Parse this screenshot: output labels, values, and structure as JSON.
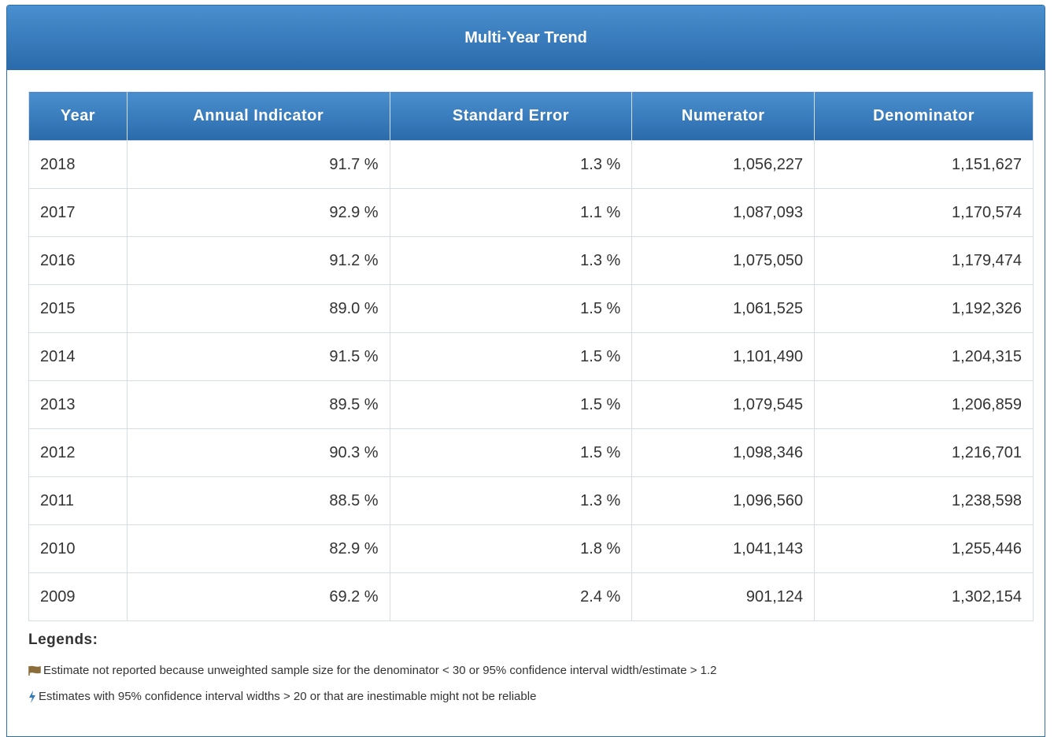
{
  "header": {
    "title": "Multi-Year Trend"
  },
  "table": {
    "columns": [
      "Year",
      "Annual Indicator",
      "Standard Error",
      "Numerator",
      "Denominator"
    ],
    "rows": [
      [
        "2018",
        "91.7 %",
        "1.3 %",
        "1,056,227",
        "1,151,627"
      ],
      [
        "2017",
        "92.9 %",
        "1.1 %",
        "1,087,093",
        "1,170,574"
      ],
      [
        "2016",
        "91.2 %",
        "1.3 %",
        "1,075,050",
        "1,179,474"
      ],
      [
        "2015",
        "89.0 %",
        "1.5 %",
        "1,061,525",
        "1,192,326"
      ],
      [
        "2014",
        "91.5 %",
        "1.5 %",
        "1,101,490",
        "1,204,315"
      ],
      [
        "2013",
        "89.5 %",
        "1.5 %",
        "1,079,545",
        "1,206,859"
      ],
      [
        "2012",
        "90.3 %",
        "1.5 %",
        "1,098,346",
        "1,216,701"
      ],
      [
        "2011",
        "88.5 %",
        "1.3 %",
        "1,096,560",
        "1,238,598"
      ],
      [
        "2010",
        "82.9 %",
        "1.8 %",
        "1,041,143",
        "1,255,446"
      ],
      [
        "2009",
        "69.2 %",
        "2.4 %",
        "901,124",
        "1,302,154"
      ]
    ]
  },
  "legends": {
    "title": "Legends:",
    "items": [
      "Estimate not reported because unweighted sample size for the denominator < 30 or 95% confidence interval width/estimate > 1.2",
      "Estimates with 95% confidence interval widths > 20 or that are inestimable might not be reliable"
    ]
  }
}
